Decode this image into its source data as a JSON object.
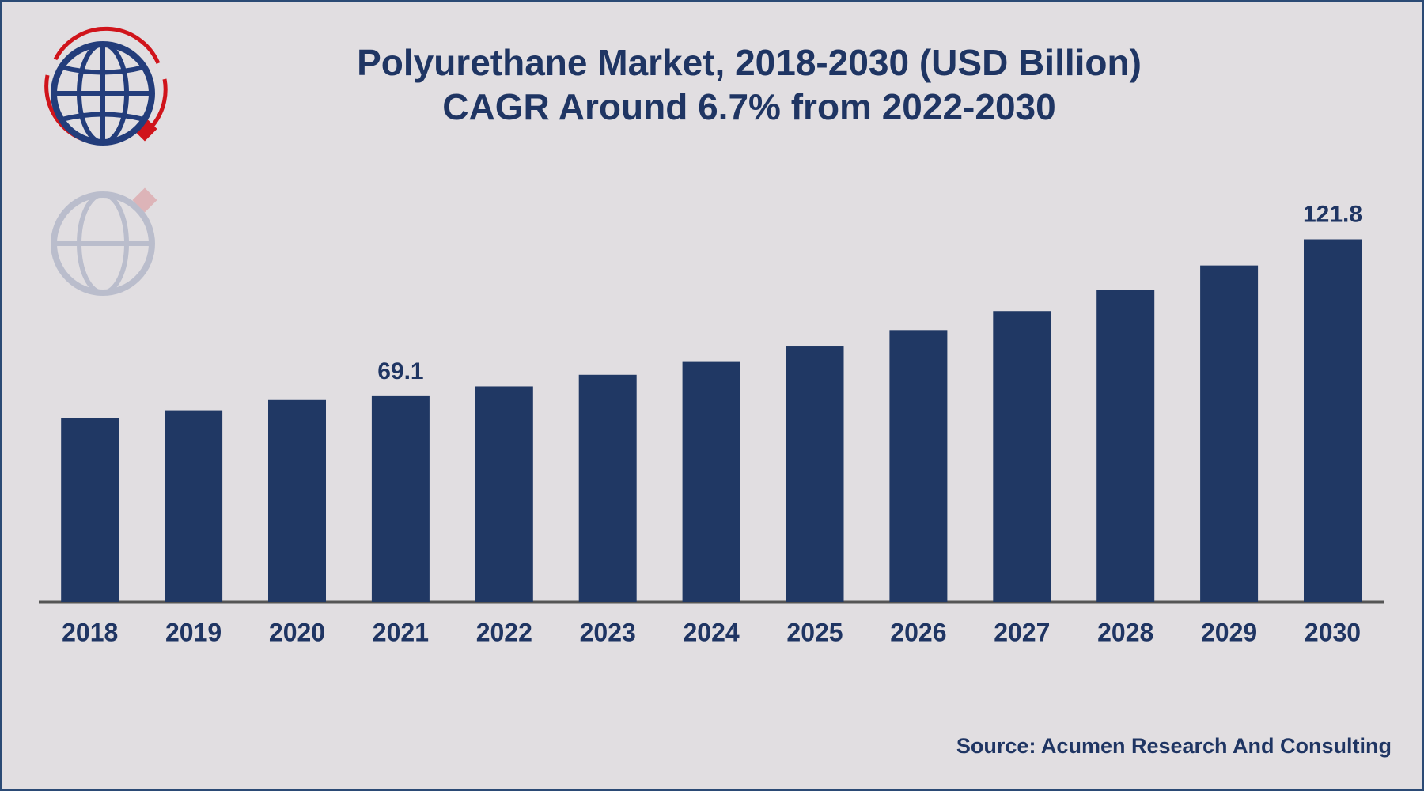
{
  "chart_data": {
    "type": "bar",
    "title": "Polyurethane Market, 2018-2030 (USD Billion)",
    "subtitle": "CAGR Around 6.7% from 2022-2030",
    "source": "Source: Acumen Research And Consulting",
    "categories": [
      "2018",
      "2019",
      "2020",
      "2021",
      "2022",
      "2023",
      "2024",
      "2025",
      "2026",
      "2027",
      "2028",
      "2029",
      "2030"
    ],
    "values": [
      61.7,
      64.4,
      67.8,
      69.1,
      72.4,
      76.3,
      80.6,
      85.8,
      91.3,
      97.7,
      104.7,
      113.0,
      121.8
    ],
    "value_labels": [
      null,
      null,
      null,
      "69.1",
      null,
      null,
      null,
      null,
      null,
      null,
      null,
      null,
      "121.8"
    ],
    "color": "#203864",
    "ylim": [
      0,
      140
    ],
    "grid": false
  }
}
